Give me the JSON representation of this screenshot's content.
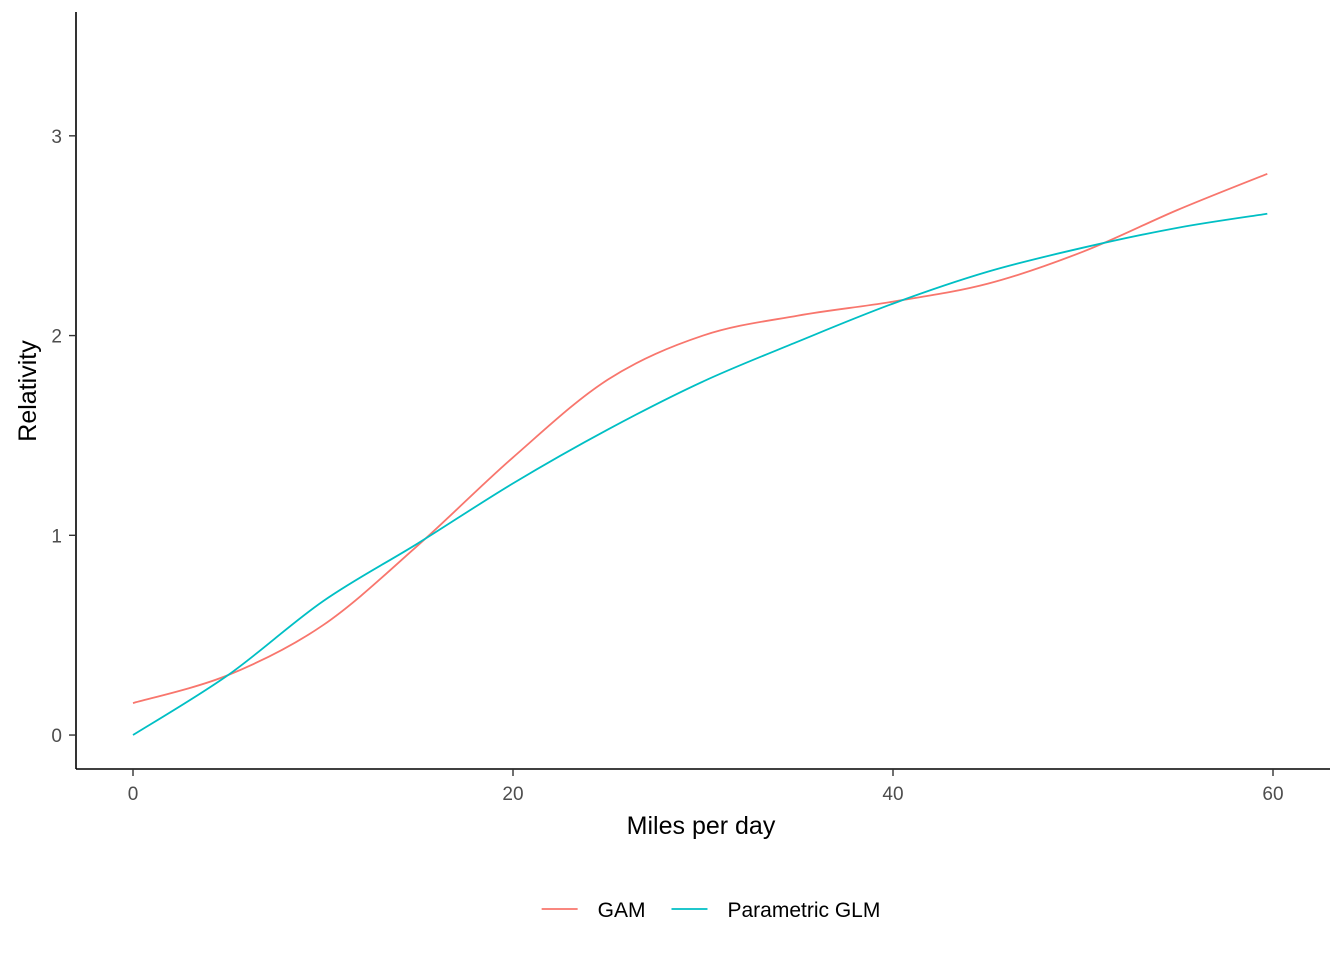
{
  "chart_data": {
    "type": "line",
    "title": "",
    "xlabel": "Miles per day",
    "ylabel": "Relativity",
    "xlim": [
      -3,
      63
    ],
    "ylim": [
      -0.17,
      3.62
    ],
    "x_ticks": [
      0,
      20,
      40,
      60
    ],
    "y_ticks": [
      0,
      1,
      2,
      3
    ],
    "x_tick_labels": [
      "0",
      "20",
      "40",
      "60"
    ],
    "y_tick_labels": [
      "0",
      "1",
      "2",
      "3"
    ],
    "grid": false,
    "legend_position": "bottom",
    "series": [
      {
        "name": "GAM",
        "color": "#F8766D",
        "x": [
          0,
          5,
          10,
          15,
          20,
          25,
          30,
          35,
          40,
          45,
          50,
          55,
          59.7
        ],
        "y": [
          0.16,
          0.3,
          0.55,
          0.95,
          1.39,
          1.78,
          2.0,
          2.1,
          2.17,
          2.26,
          2.42,
          2.63,
          2.81
        ]
      },
      {
        "name": "Parametric GLM",
        "color": "#00BFC4",
        "x": [
          0,
          5,
          10,
          15,
          20,
          25,
          30,
          35,
          40,
          45,
          50,
          55,
          59.7
        ],
        "y": [
          0.0,
          0.3,
          0.67,
          0.96,
          1.26,
          1.53,
          1.77,
          1.97,
          2.16,
          2.32,
          2.44,
          2.54,
          2.61
        ]
      }
    ]
  }
}
